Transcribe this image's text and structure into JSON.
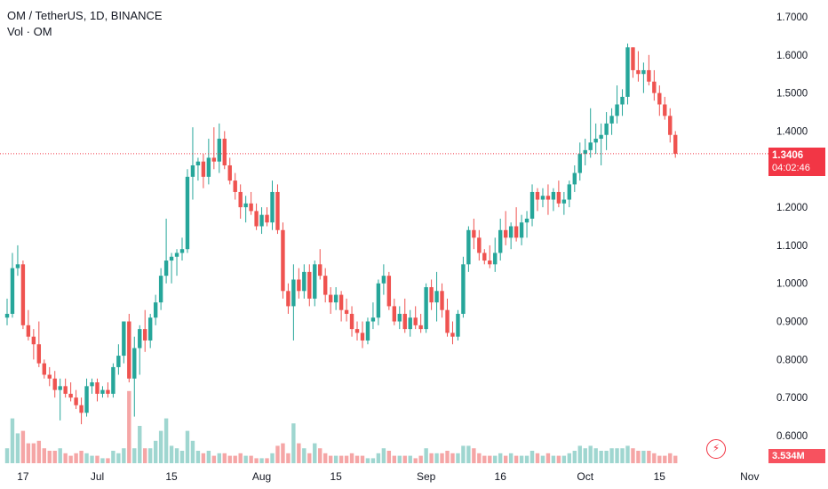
{
  "legend": {
    "symbol": "OM / TetherUS, 1D, BINANCE",
    "volume_label": "Vol · OM"
  },
  "last_price": "1.3406",
  "countdown": "04:02:46",
  "volume_value": "3.534M",
  "colors": {
    "up": "#26a69a",
    "down": "#ef5350",
    "volume_up": "#9fd6d0",
    "volume_down": "#f5a6a6",
    "price_line": "#f23645",
    "axis_text": "#131722"
  },
  "icons": {
    "alert": "lightning-bolt-icon"
  },
  "chart_data": {
    "type": "candlestick",
    "title": "OM / TetherUS, 1D, BINANCE",
    "ylim": [
      0.55,
      1.73
    ],
    "y_ticks": [
      "1.7000",
      "1.6000",
      "1.5000",
      "1.4000",
      "1.3000",
      "1.2000",
      "1.1000",
      "1.0000",
      "0.9000",
      "0.8000",
      "0.7000",
      "0.6000"
    ],
    "x_ticks": [
      "17",
      "Jul",
      "15",
      "Aug",
      "15",
      "Sep",
      "16",
      "Oct",
      "15",
      "Nov"
    ],
    "x_tick_index": [
      3,
      17,
      31,
      48,
      62,
      79,
      93,
      109,
      123,
      140
    ],
    "candles": [
      [
        0.91,
        0.96,
        0.89,
        0.92
      ],
      [
        0.92,
        1.08,
        0.91,
        1.04
      ],
      [
        1.04,
        1.1,
        1.02,
        1.05
      ],
      [
        1.05,
        1.06,
        0.88,
        0.89
      ],
      [
        0.89,
        0.93,
        0.85,
        0.86
      ],
      [
        0.86,
        0.88,
        0.8,
        0.84
      ],
      [
        0.84,
        0.9,
        0.78,
        0.79
      ],
      [
        0.79,
        0.8,
        0.75,
        0.76
      ],
      [
        0.76,
        0.78,
        0.73,
        0.75
      ],
      [
        0.75,
        0.77,
        0.7,
        0.72
      ],
      [
        0.72,
        0.75,
        0.64,
        0.73
      ],
      [
        0.73,
        0.75,
        0.7,
        0.71
      ],
      [
        0.71,
        0.74,
        0.69,
        0.7
      ],
      [
        0.7,
        0.72,
        0.67,
        0.68
      ],
      [
        0.68,
        0.7,
        0.63,
        0.66
      ],
      [
        0.66,
        0.75,
        0.65,
        0.73
      ],
      [
        0.73,
        0.75,
        0.71,
        0.74
      ],
      [
        0.74,
        0.75,
        0.69,
        0.71
      ],
      [
        0.71,
        0.73,
        0.7,
        0.72
      ],
      [
        0.72,
        0.74,
        0.7,
        0.71
      ],
      [
        0.71,
        0.79,
        0.7,
        0.78
      ],
      [
        0.78,
        0.84,
        0.76,
        0.81
      ],
      [
        0.81,
        0.9,
        0.79,
        0.9
      ],
      [
        0.9,
        0.92,
        0.74,
        0.75
      ],
      [
        0.75,
        0.86,
        0.65,
        0.83
      ],
      [
        0.83,
        0.89,
        0.76,
        0.88
      ],
      [
        0.88,
        0.93,
        0.82,
        0.85
      ],
      [
        0.85,
        0.92,
        0.83,
        0.91
      ],
      [
        0.91,
        0.97,
        0.89,
        0.95
      ],
      [
        0.95,
        1.04,
        0.93,
        1.02
      ],
      [
        1.02,
        1.17,
        1.0,
        1.06
      ],
      [
        1.06,
        1.08,
        1.0,
        1.07
      ],
      [
        1.07,
        1.09,
        1.02,
        1.08
      ],
      [
        1.08,
        1.12,
        1.06,
        1.09
      ],
      [
        1.09,
        1.3,
        1.08,
        1.28
      ],
      [
        1.28,
        1.41,
        1.22,
        1.31
      ],
      [
        1.31,
        1.33,
        1.27,
        1.32
      ],
      [
        1.32,
        1.34,
        1.25,
        1.28
      ],
      [
        1.28,
        1.38,
        1.26,
        1.33
      ],
      [
        1.33,
        1.41,
        1.3,
        1.32
      ],
      [
        1.32,
        1.42,
        1.29,
        1.38
      ],
      [
        1.38,
        1.4,
        1.3,
        1.31
      ],
      [
        1.31,
        1.33,
        1.26,
        1.27
      ],
      [
        1.27,
        1.29,
        1.22,
        1.24
      ],
      [
        1.24,
        1.26,
        1.17,
        1.2
      ],
      [
        1.2,
        1.23,
        1.16,
        1.21
      ],
      [
        1.21,
        1.24,
        1.18,
        1.19
      ],
      [
        1.19,
        1.21,
        1.14,
        1.15
      ],
      [
        1.15,
        1.2,
        1.13,
        1.18
      ],
      [
        1.18,
        1.2,
        1.15,
        1.16
      ],
      [
        1.16,
        1.27,
        1.14,
        1.24
      ],
      [
        1.24,
        1.26,
        1.13,
        1.14
      ],
      [
        1.14,
        1.16,
        0.96,
        0.98
      ],
      [
        0.98,
        1.0,
        0.92,
        0.94
      ],
      [
        0.94,
        1.05,
        0.85,
        1.01
      ],
      [
        1.01,
        1.04,
        0.96,
        0.98
      ],
      [
        0.98,
        1.05,
        0.96,
        1.03
      ],
      [
        1.03,
        1.05,
        0.94,
        0.96
      ],
      [
        0.96,
        1.06,
        0.94,
        1.05
      ],
      [
        1.05,
        1.09,
        1.01,
        1.02
      ],
      [
        1.02,
        1.04,
        0.95,
        0.97
      ],
      [
        0.97,
        0.99,
        0.92,
        0.95
      ],
      [
        0.95,
        0.99,
        0.93,
        0.97
      ],
      [
        0.97,
        0.98,
        0.9,
        0.93
      ],
      [
        0.93,
        0.96,
        0.9,
        0.92
      ],
      [
        0.92,
        0.94,
        0.86,
        0.88
      ],
      [
        0.88,
        0.9,
        0.85,
        0.87
      ],
      [
        0.87,
        0.9,
        0.83,
        0.85
      ],
      [
        0.85,
        0.91,
        0.84,
        0.9
      ],
      [
        0.9,
        0.95,
        0.88,
        0.91
      ],
      [
        0.91,
        1.01,
        0.89,
        1.0
      ],
      [
        1.0,
        1.05,
        0.97,
        1.02
      ],
      [
        1.02,
        1.03,
        0.93,
        0.94
      ],
      [
        0.94,
        0.96,
        0.89,
        0.9
      ],
      [
        0.9,
        0.94,
        0.88,
        0.92
      ],
      [
        0.92,
        0.96,
        0.87,
        0.88
      ],
      [
        0.88,
        0.93,
        0.86,
        0.91
      ],
      [
        0.91,
        0.94,
        0.88,
        0.89
      ],
      [
        0.89,
        0.92,
        0.87,
        0.88
      ],
      [
        0.88,
        1.0,
        0.87,
        0.99
      ],
      [
        0.99,
        1.01,
        0.93,
        0.95
      ],
      [
        0.95,
        1.03,
        0.9,
        0.98
      ],
      [
        0.98,
        1.0,
        0.91,
        0.93
      ],
      [
        0.93,
        0.96,
        0.86,
        0.87
      ],
      [
        0.87,
        0.9,
        0.84,
        0.86
      ],
      [
        0.86,
        0.93,
        0.85,
        0.92
      ],
      [
        0.92,
        1.07,
        0.91,
        1.05
      ],
      [
        1.05,
        1.15,
        1.03,
        1.14
      ],
      [
        1.14,
        1.17,
        1.09,
        1.12
      ],
      [
        1.12,
        1.14,
        1.06,
        1.08
      ],
      [
        1.08,
        1.09,
        1.05,
        1.06
      ],
      [
        1.06,
        1.1,
        1.04,
        1.05
      ],
      [
        1.05,
        1.12,
        1.03,
        1.08
      ],
      [
        1.08,
        1.17,
        1.06,
        1.14
      ],
      [
        1.14,
        1.19,
        1.1,
        1.12
      ],
      [
        1.12,
        1.16,
        1.09,
        1.15
      ],
      [
        1.15,
        1.2,
        1.11,
        1.12
      ],
      [
        1.12,
        1.18,
        1.1,
        1.16
      ],
      [
        1.16,
        1.19,
        1.12,
        1.17
      ],
      [
        1.17,
        1.26,
        1.15,
        1.24
      ],
      [
        1.24,
        1.25,
        1.19,
        1.22
      ],
      [
        1.22,
        1.25,
        1.2,
        1.23
      ],
      [
        1.23,
        1.26,
        1.18,
        1.22
      ],
      [
        1.22,
        1.25,
        1.19,
        1.24
      ],
      [
        1.24,
        1.27,
        1.2,
        1.21
      ],
      [
        1.21,
        1.24,
        1.18,
        1.22
      ],
      [
        1.22,
        1.27,
        1.2,
        1.26
      ],
      [
        1.26,
        1.31,
        1.24,
        1.29
      ],
      [
        1.29,
        1.37,
        1.27,
        1.34
      ],
      [
        1.34,
        1.38,
        1.31,
        1.35
      ],
      [
        1.35,
        1.46,
        1.33,
        1.37
      ],
      [
        1.37,
        1.42,
        1.34,
        1.38
      ],
      [
        1.38,
        1.42,
        1.31,
        1.39
      ],
      [
        1.39,
        1.45,
        1.35,
        1.42
      ],
      [
        1.42,
        1.46,
        1.39,
        1.44
      ],
      [
        1.44,
        1.52,
        1.42,
        1.47
      ],
      [
        1.47,
        1.51,
        1.44,
        1.49
      ],
      [
        1.49,
        1.63,
        1.47,
        1.62
      ],
      [
        1.62,
        1.62,
        1.54,
        1.56
      ],
      [
        1.56,
        1.61,
        1.53,
        1.55
      ],
      [
        1.55,
        1.58,
        1.5,
        1.56
      ],
      [
        1.56,
        1.6,
        1.52,
        1.53
      ],
      [
        1.53,
        1.56,
        1.48,
        1.5
      ],
      [
        1.5,
        1.52,
        1.44,
        1.47
      ],
      [
        1.47,
        1.49,
        1.43,
        1.44
      ],
      [
        1.44,
        1.46,
        1.37,
        1.39
      ],
      [
        1.39,
        1.4,
        1.33,
        1.3406
      ]
    ],
    "volumes": [
      0.6,
      1.8,
      1.2,
      1.3,
      0.8,
      0.8,
      0.9,
      0.6,
      0.5,
      0.5,
      0.6,
      0.4,
      0.3,
      0.4,
      0.5,
      0.4,
      0.3,
      0.3,
      0.2,
      0.2,
      0.5,
      0.4,
      0.6,
      2.9,
      0.6,
      1.5,
      0.6,
      0.6,
      0.9,
      1.3,
      1.8,
      0.7,
      0.6,
      0.5,
      1.3,
      0.9,
      0.5,
      0.4,
      0.5,
      0.3,
      0.4,
      0.4,
      0.3,
      0.3,
      0.4,
      0.3,
      0.3,
      0.2,
      0.2,
      0.2,
      0.4,
      0.7,
      0.8,
      0.4,
      1.6,
      0.8,
      0.6,
      0.4,
      0.8,
      0.6,
      0.4,
      0.3,
      0.3,
      0.3,
      0.3,
      0.4,
      0.3,
      0.3,
      0.2,
      0.2,
      0.4,
      0.6,
      0.5,
      0.3,
      0.3,
      0.3,
      0.3,
      0.2,
      0.3,
      0.6,
      0.4,
      0.4,
      0.4,
      0.5,
      0.4,
      0.4,
      0.7,
      0.7,
      0.6,
      0.4,
      0.3,
      0.3,
      0.3,
      0.4,
      0.3,
      0.4,
      0.3,
      0.3,
      0.3,
      0.5,
      0.4,
      0.3,
      0.4,
      0.3,
      0.3,
      0.3,
      0.4,
      0.5,
      0.7,
      0.6,
      0.7,
      0.6,
      0.5,
      0.5,
      0.6,
      0.6,
      0.6,
      0.7,
      0.6,
      0.5,
      0.5,
      0.5,
      0.4,
      0.3,
      0.3,
      0.4,
      0.3
    ]
  }
}
